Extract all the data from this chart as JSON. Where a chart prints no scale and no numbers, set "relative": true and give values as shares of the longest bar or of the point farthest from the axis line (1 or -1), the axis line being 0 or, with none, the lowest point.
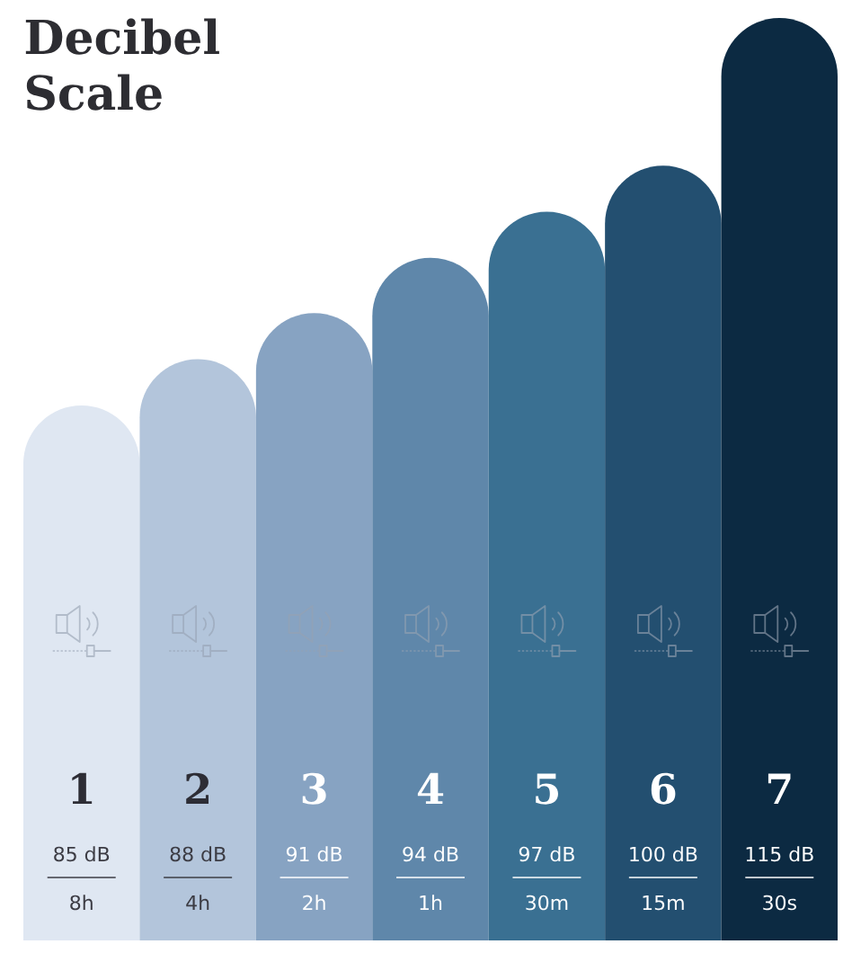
{
  "chart_data": {
    "type": "bar",
    "title": "Decibel Scale",
    "categories": [
      "1",
      "2",
      "3",
      "4",
      "5",
      "6",
      "7"
    ],
    "values": [
      0.58,
      0.63,
      0.68,
      0.74,
      0.79,
      0.84,
      1
    ],
    "relative": true,
    "colors": [
      "#dfe7f2",
      "#b3c5db",
      "#87a3c2",
      "#5f87aa",
      "#3a7092",
      "#234f70",
      "#0c2a42"
    ],
    "annotations": [
      "85 dB",
      "8h",
      "88 dB",
      "4h",
      "91 dB",
      "2h",
      "94 dB",
      "1h",
      "97 dB",
      "30m",
      "100 dB",
      "15m",
      "115 dB",
      "30s"
    ]
  }
}
